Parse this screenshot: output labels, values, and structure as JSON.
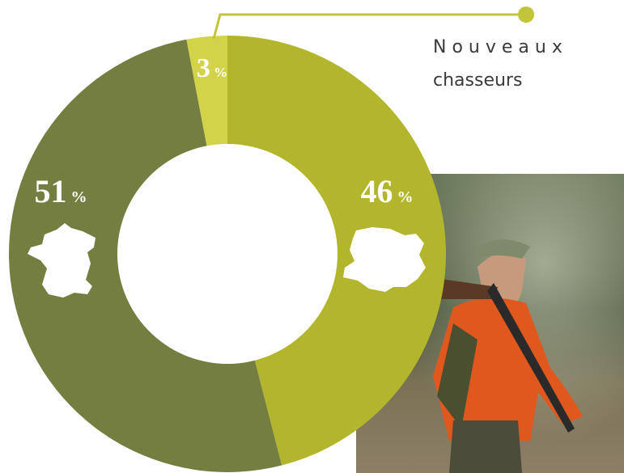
{
  "chart_data": {
    "type": "donut",
    "categories": [
      null,
      null,
      null
    ],
    "values": [
      46,
      51,
      3
    ],
    "value_labels": [
      "46 %",
      "51 %",
      "3 %"
    ],
    "colors": [
      "#b3b62c",
      "#757e41",
      "#d3d349"
    ],
    "annotation": [
      "Nouveaux",
      "chasseurs"
    ]
  }
}
